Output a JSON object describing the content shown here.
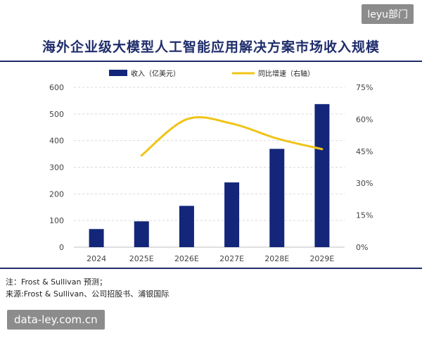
{
  "badge": "leyu部门",
  "watermark": "data-ley.com.cn",
  "notes": {
    "line1": "注：Frost & Sullivan 预测；",
    "line2": "来源:Frost & Sullivan、公司招股书、浦银国际"
  },
  "colors": {
    "bar": "#13267a",
    "line": "#f0c419",
    "title": "#1f2d6b"
  },
  "chart_data": {
    "type": "bar",
    "title": "海外企业级大模型人工智能应用解决方案市场收入规模",
    "categories": [
      "2024",
      "2025E",
      "2026E",
      "2027E",
      "2028E",
      "2029E"
    ],
    "series": [
      {
        "name": "收入（亿美元）",
        "type": "bar",
        "axis": "left",
        "values": [
          68,
          97,
          155,
          243,
          369,
          537
        ]
      },
      {
        "name": "同比增速（右轴）",
        "type": "line",
        "axis": "right",
        "values": [
          null,
          43,
          60,
          58,
          51,
          46
        ]
      }
    ],
    "ylim": [
      0,
      600
    ],
    "yticks": [
      "0",
      "100",
      "200",
      "300",
      "400",
      "500",
      "600"
    ],
    "y2lim": [
      0,
      75
    ],
    "y2ticks": [
      "0%",
      "15%",
      "30%",
      "45%",
      "60%",
      "75%"
    ],
    "grid": true,
    "legend": "top"
  }
}
